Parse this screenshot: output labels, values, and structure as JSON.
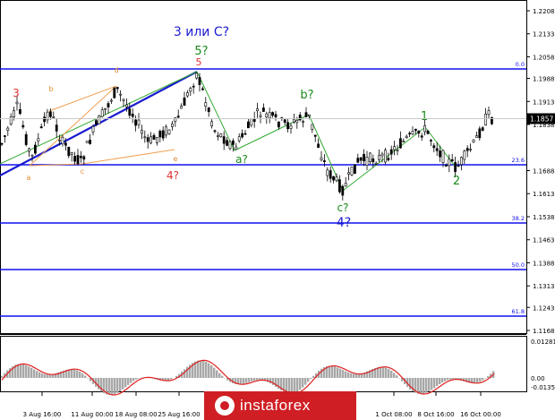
{
  "chart_data": {
    "type": "candlestick",
    "title": "",
    "xlabel": "",
    "ylabel": "",
    "ylim": [
      1.1168,
      1.2208
    ],
    "price_ticks": [
      "1.2208",
      "1.2133",
      "1.2058",
      "1.1988",
      "1.1913",
      "1.1838",
      "1.1688",
      "1.1613",
      "1.1538",
      "1.1463",
      "1.1388",
      "1.1313",
      "1.1243",
      "1.1168"
    ],
    "date_ticks": [
      "3 Aug 16:00",
      "11 Aug 00:00",
      "18 Aug 08:00",
      "25 Aug 16:00",
      "1 Oct 08:00",
      "8 Oct 16:00",
      "16 Oct 00:00"
    ],
    "current_price": "1.1857",
    "fib_levels": [
      {
        "label": "0.0",
        "price": 2002
      },
      {
        "label": "23.6",
        "price": 1.1708
      },
      {
        "label": "38.2",
        "price": 1.1527
      },
      {
        "label": "50.0",
        "price": 1.1381
      },
      {
        "label": "61.8",
        "price": 1.1235
      }
    ],
    "wave_labels": [
      {
        "text": "3 или C?",
        "color": "#1a1ad0"
      },
      {
        "text": "5?",
        "color": "#1a8a1a"
      },
      {
        "text": "5",
        "color": "#e03030"
      },
      {
        "text": "3",
        "color": "#e03030"
      },
      {
        "text": "4?",
        "color": "#e03030"
      },
      {
        "text": "b?",
        "color": "#1a8a1a"
      },
      {
        "text": "a?",
        "color": "#1a8a1a"
      },
      {
        "text": "c?",
        "color": "#1a8a1a"
      },
      {
        "text": "4?",
        "color": "#1a1ad0"
      },
      {
        "text": "1",
        "color": "#1a8a1a"
      },
      {
        "text": "2",
        "color": "#1a8a1a"
      },
      {
        "text": "b",
        "color": "#e08a30"
      },
      {
        "text": "a",
        "color": "#e08a30"
      },
      {
        "text": "c",
        "color": "#e08a30"
      },
      {
        "text": "d",
        "color": "#e08a30"
      },
      {
        "text": "e",
        "color": "#e08a30"
      }
    ],
    "indicator": {
      "ticks": [
        "0.01281",
        "0.00",
        "-0.01351"
      ]
    }
  },
  "watermark": {
    "brand": "instaforex"
  }
}
